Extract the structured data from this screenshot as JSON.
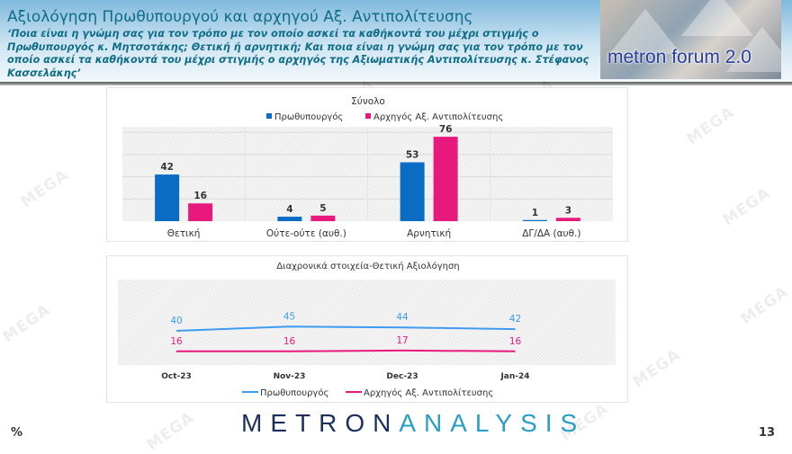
{
  "header": {
    "title": "Αξιολόγηση Πρωθυπουργού και αρχηγού Αξ. Αντιπολίτευσης",
    "question": "‘Ποια είναι η γνώμη σας για τον τρόπο με τον οποίο ασκεί τα καθήκοντά του μέχρι στιγμής ο Πρωθυπουργός κ. Μητσοτάκης; Θετική ή αρνητική; Και ποια είναι η γνώμη σας για τον τρόπο με τον οποίο ασκεί τα καθήκοντά του μέχρι στιγμής ο αρχηγός της Αξιωματικής Αντιπολίτευσης κ. Στέφανος Κασσελάκης’",
    "logo_text": "metron forum 2.0"
  },
  "watermark": "MEGA",
  "footer": {
    "logo_a": "METRON",
    "logo_b": "ANALYSIS",
    "unit": "%",
    "page": "13"
  },
  "colors": {
    "pm": "#0a6cc3",
    "opp": "#e8197c",
    "pm_line": "#3d9bf0",
    "opp_line": "#e8197c"
  },
  "chart_data": [
    {
      "type": "bar",
      "title": "Σύνολο",
      "categories": [
        "Θετική",
        "Ούτε-ούτε (αυθ.)",
        "Αρνητική",
        "ΔΓ/ΔΑ (αυθ.)"
      ],
      "series": [
        {
          "name": "Πρωθυπουργός",
          "values": [
            42,
            4,
            53,
            1
          ]
        },
        {
          "name": "Αρχηγός Αξ. Αντιπολίτευσης",
          "values": [
            16,
            5,
            76,
            3
          ]
        }
      ],
      "ylim": [
        0,
        85
      ],
      "grid": true,
      "legend": "top"
    },
    {
      "type": "line",
      "title": "Διαχρονικά στοιχεία-Θετική Αξιολόγηση",
      "categories": [
        "Oct-23",
        "Nov-23",
        "Dec-23",
        "Jan-24"
      ],
      "series": [
        {
          "name": "Πρωθυπουργός",
          "values": [
            40,
            45,
            44,
            42
          ]
        },
        {
          "name": "Αρχηγός Αξ. Αντιπολίτευσης",
          "values": [
            16,
            16,
            17,
            16
          ]
        }
      ],
      "ylim": [
        0,
        100
      ],
      "legend": "bottom"
    }
  ]
}
